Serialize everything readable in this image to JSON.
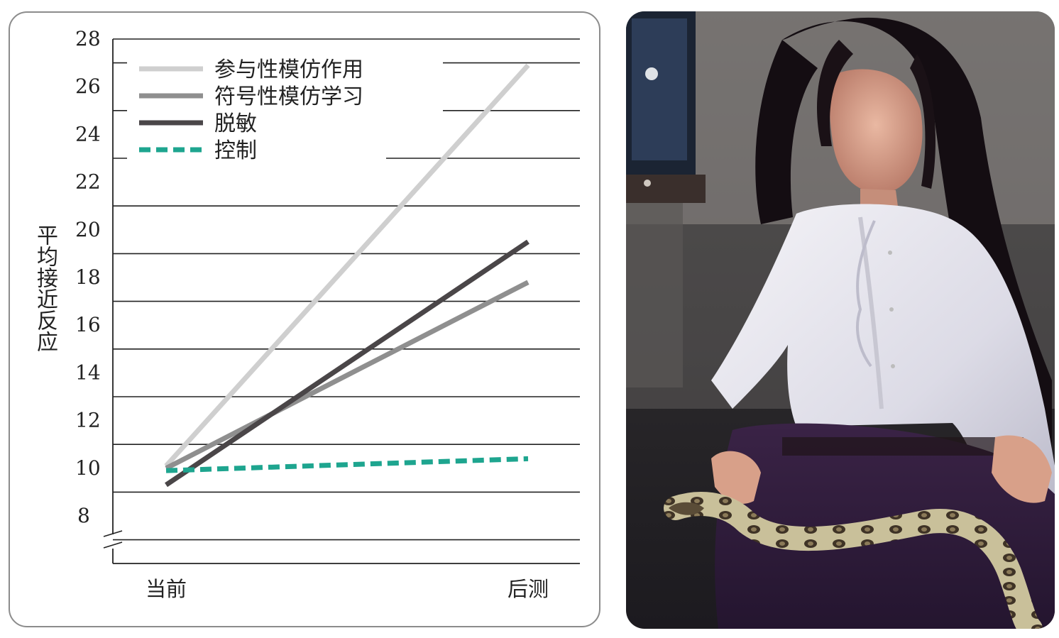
{
  "chart_data": {
    "type": "line",
    "title": "",
    "xlabel": "",
    "ylabel": "平均接近反应",
    "categories": [
      "当前",
      "后测"
    ],
    "y_ticks": [
      8,
      10,
      12,
      14,
      16,
      18,
      20,
      22,
      24,
      26,
      28
    ],
    "ylim": [
      6,
      28.5
    ],
    "axis_break": true,
    "grid": true,
    "legend_position": "top-left",
    "series": [
      {
        "name": "参与性模仿作用",
        "values": [
          10.1,
          26.9
        ],
        "color": "#cfcfcf",
        "style": "solid"
      },
      {
        "name": "符号性模仿学习",
        "values": [
          10.0,
          17.8
        ],
        "color": "#8f8f8f",
        "style": "solid"
      },
      {
        "name": "脱敏",
        "values": [
          9.3,
          19.5
        ],
        "color": "#4a4648",
        "style": "solid"
      },
      {
        "name": "控制",
        "values": [
          9.9,
          10.4
        ],
        "color": "#1ea58f",
        "style": "dashed"
      }
    ]
  },
  "photo": {
    "description_icon": "woman-holding-snake-photo"
  }
}
